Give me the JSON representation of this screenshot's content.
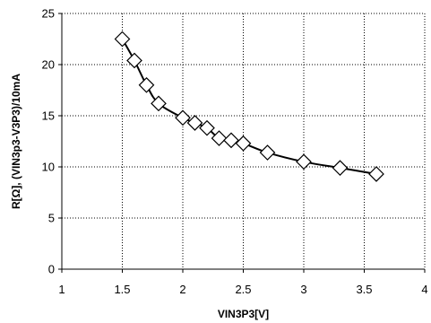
{
  "chart_data": {
    "type": "scatter",
    "title": "",
    "xlabel": "VIN3P3[V]",
    "ylabel": "R[Ω], (VIN3p3-V3P3)/10mA",
    "xlim": [
      1,
      4
    ],
    "ylim": [
      0,
      25
    ],
    "x_ticks": [
      "1",
      "1.5",
      "2",
      "2.5",
      "3",
      "3.5",
      "4"
    ],
    "y_ticks": [
      "0",
      "5",
      "10",
      "15",
      "20",
      "25"
    ],
    "grid": "dotted",
    "legend": "none",
    "marker": "open-diamond",
    "trendline": true,
    "series": [
      {
        "x": [
          1.5,
          1.6,
          1.7,
          1.8,
          2.0,
          2.1,
          2.2,
          2.3,
          2.4,
          2.5,
          2.7,
          3.0,
          3.3,
          3.6
        ],
        "y": [
          22.5,
          20.4,
          18.0,
          16.2,
          14.8,
          14.3,
          13.8,
          12.8,
          12.6,
          12.3,
          11.4,
          10.5,
          9.9,
          9.3
        ]
      }
    ]
  }
}
